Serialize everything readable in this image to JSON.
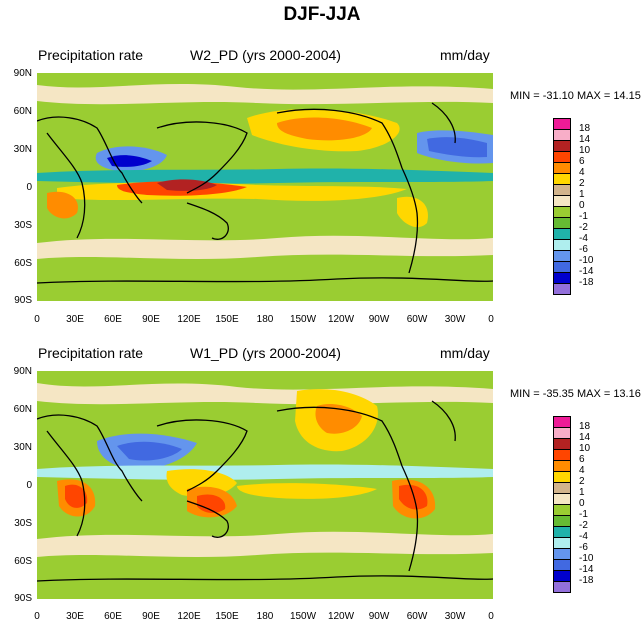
{
  "title": "DJF-JJA",
  "panels": [
    {
      "left": "Precipitation rate",
      "center": "W2_PD (yrs 2000-2004)",
      "right": "mm/day",
      "stats": "MIN = -31.10 MAX =  14.15"
    },
    {
      "left": "Precipitation rate",
      "center": "W1_PD (yrs 2000-2004)",
      "right": "mm/day",
      "stats": "MIN = -35.35 MAX =  13.16"
    }
  ],
  "lat_labels": [
    "90N",
    "60N",
    "30N",
    "0",
    "30S",
    "60S",
    "90S"
  ],
  "lon_labels": [
    "0",
    "30E",
    "60E",
    "90E",
    "120E",
    "150E",
    "180",
    "150W",
    "120W",
    "90W",
    "60W",
    "30W",
    "0"
  ],
  "legend": {
    "colors": [
      "#ee1b97",
      "#f8aec8",
      "#b22222",
      "#ff4500",
      "#ff8c00",
      "#ffd700",
      "#d2b48c",
      "#f5e6c4",
      "#9acd32",
      "#66bb33",
      "#20b2aa",
      "#afeeee",
      "#6495ed",
      "#4169e1",
      "#0000cd",
      "#9370db"
    ],
    "labels": [
      "18",
      "14",
      "10",
      "6",
      "4",
      "2",
      "1",
      "0",
      "-1",
      "-2",
      "-4",
      "-6",
      "-10",
      "-14",
      "-18"
    ]
  },
  "colors": {
    "background_field": "#9acd32",
    "ocean_zero": "#f5e6c4",
    "coast": "#000000"
  }
}
